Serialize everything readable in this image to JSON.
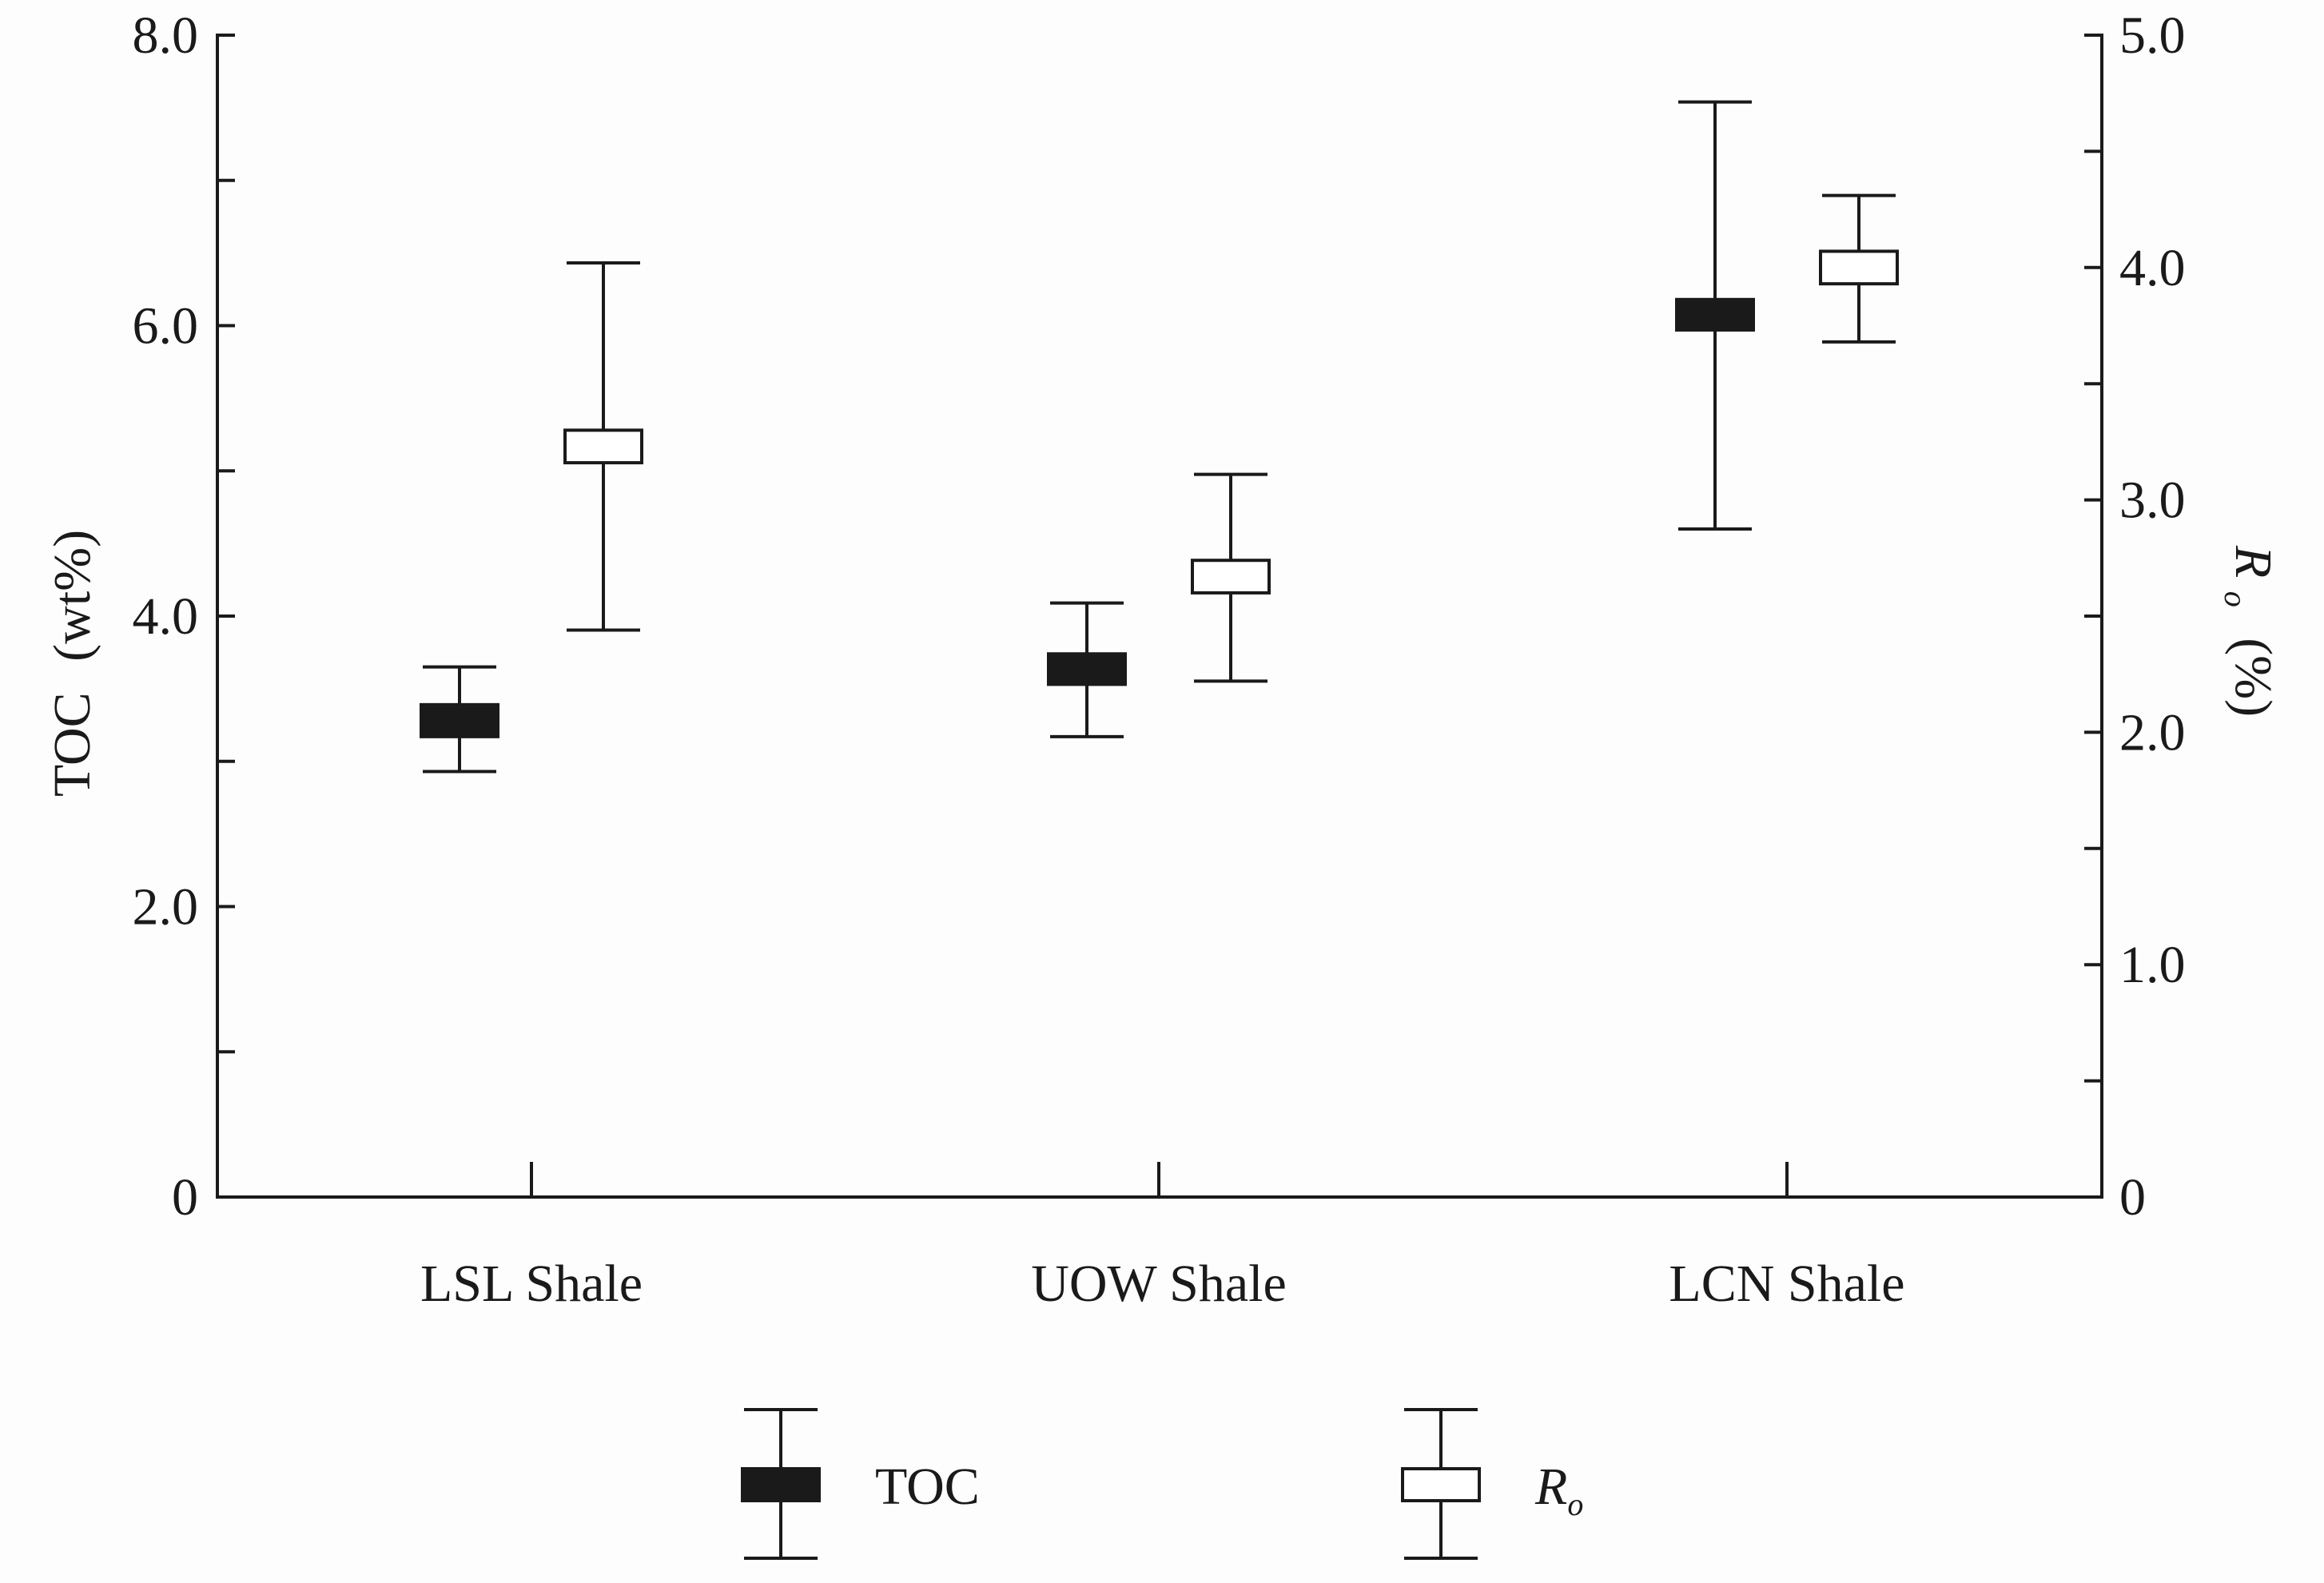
{
  "chart_data": {
    "type": "box-error",
    "categories": [
      "LSL Shale",
      "UOW Shale",
      "LCN Shale"
    ],
    "y_left": {
      "label_main": "TOC",
      "label_unit": "(wt%)",
      "lim": [
        0,
        8
      ],
      "tick_values": [
        0,
        1,
        2,
        3,
        4,
        5,
        6,
        7,
        8
      ],
      "tick_labels": [
        "0",
        "",
        "2.0",
        "",
        "4.0",
        "",
        "6.0",
        "",
        "8.0"
      ]
    },
    "y_right": {
      "label_main": "R",
      "label_sub": "o",
      "label_unit": "(%)",
      "lim": [
        0,
        5
      ],
      "tick_values": [
        0,
        0.5,
        1,
        1.5,
        2,
        2.5,
        3,
        3.5,
        4,
        4.5,
        5
      ],
      "tick_labels": [
        "0",
        "",
        "1.0",
        "",
        "2.0",
        "",
        "3.0",
        "",
        "4.0",
        "",
        "5.0"
      ]
    },
    "series": [
      {
        "name": "TOC",
        "axis": "left",
        "fill": "#1a1a1a",
        "points": [
          {
            "category": "LSL Shale",
            "min": 2.93,
            "box_low": 3.17,
            "box_high": 3.39,
            "max": 3.65
          },
          {
            "category": "UOW Shale",
            "min": 3.17,
            "box_low": 3.53,
            "box_high": 3.74,
            "max": 4.09
          },
          {
            "category": "LCN Shale",
            "min": 4.6,
            "box_low": 5.97,
            "box_high": 6.18,
            "max": 7.54
          }
        ]
      },
      {
        "name": "R",
        "name_sub": "o",
        "axis": "right",
        "fill": "#ffffff",
        "points": [
          {
            "category": "LSL Shale",
            "min": 2.44,
            "box_low": 3.16,
            "box_high": 3.3,
            "max": 4.02
          },
          {
            "category": "UOW Shale",
            "min": 2.22,
            "box_low": 2.6,
            "box_high": 2.74,
            "max": 3.11
          },
          {
            "category": "LCN Shale",
            "min": 3.68,
            "box_low": 3.93,
            "box_high": 4.07,
            "max": 4.31
          }
        ]
      }
    ],
    "legend": {
      "placement": "bottom",
      "entries": [
        {
          "label": "TOC",
          "fill": "#1a1a1a"
        },
        {
          "label": "R",
          "sub": "o",
          "fill": "#ffffff"
        }
      ]
    },
    "grid": false
  }
}
